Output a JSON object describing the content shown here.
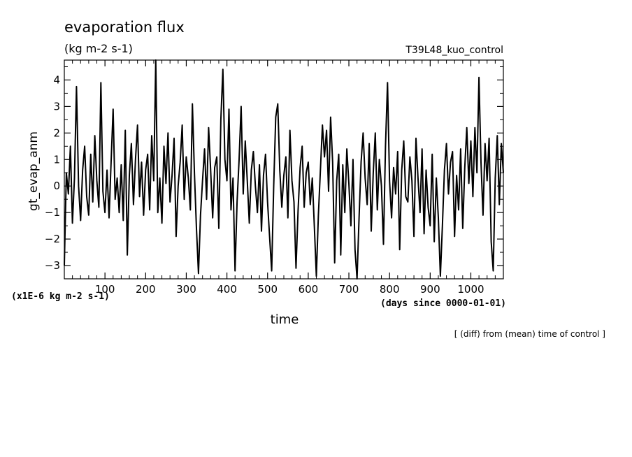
{
  "chart_data": {
    "type": "line",
    "title": "evaporation flux",
    "units": "(kg m-2 s-1)",
    "run_label": "T39L48_kuo_control",
    "xlabel": "time",
    "x_units_note": "(days since 0000-01-01)",
    "ylabel": "gt_evap_anm",
    "y_scale_note": "(x1E-6 kg m-2 s-1)",
    "footnote": "[ (diff) from (mean) time of control ]",
    "xlim": [
      0,
      1080
    ],
    "ylim": [
      -3.5,
      4.75
    ],
    "x_ticks": [
      100,
      200,
      300,
      400,
      500,
      600,
      700,
      800,
      900,
      1000
    ],
    "y_ticks": [
      -3,
      -2,
      -1,
      0,
      1,
      2,
      3,
      4
    ],
    "series": [
      {
        "values": [
          [
            0,
            -3.0
          ],
          [
            5,
            0.5
          ],
          [
            10,
            -0.3
          ],
          [
            15,
            1.5
          ],
          [
            20,
            -1.4
          ],
          [
            25,
            0.3
          ],
          [
            30,
            3.75
          ],
          [
            35,
            0.0
          ],
          [
            40,
            -1.3
          ],
          [
            45,
            0.6
          ],
          [
            50,
            1.5
          ],
          [
            55,
            -0.4
          ],
          [
            60,
            -1.1
          ],
          [
            65,
            1.2
          ],
          [
            70,
            -0.6
          ],
          [
            75,
            1.9
          ],
          [
            80,
            0.2
          ],
          [
            85,
            -0.8
          ],
          [
            90,
            3.9
          ],
          [
            95,
            -0.2
          ],
          [
            100,
            -1.0
          ],
          [
            105,
            0.6
          ],
          [
            110,
            -1.2
          ],
          [
            115,
            0.9
          ],
          [
            120,
            2.9
          ],
          [
            125,
            -0.5
          ],
          [
            130,
            0.3
          ],
          [
            135,
            -1.0
          ],
          [
            140,
            0.8
          ],
          [
            145,
            -1.3
          ],
          [
            150,
            2.1
          ],
          [
            155,
            -2.6
          ],
          [
            160,
            0.4
          ],
          [
            165,
            1.6
          ],
          [
            170,
            -0.7
          ],
          [
            175,
            1.0
          ],
          [
            180,
            2.3
          ],
          [
            185,
            -0.4
          ],
          [
            190,
            0.9
          ],
          [
            195,
            -1.1
          ],
          [
            200,
            0.6
          ],
          [
            205,
            1.2
          ],
          [
            210,
            -0.9
          ],
          [
            215,
            1.9
          ],
          [
            220,
            0.2
          ],
          [
            225,
            4.75
          ],
          [
            230,
            -1.0
          ],
          [
            235,
            0.3
          ],
          [
            240,
            -1.4
          ],
          [
            245,
            1.5
          ],
          [
            250,
            0.1
          ],
          [
            255,
            2.0
          ],
          [
            260,
            -0.6
          ],
          [
            265,
            0.4
          ],
          [
            270,
            1.8
          ],
          [
            275,
            -1.9
          ],
          [
            280,
            0.0
          ],
          [
            285,
            0.9
          ],
          [
            290,
            2.3
          ],
          [
            295,
            -0.5
          ],
          [
            300,
            1.1
          ],
          [
            305,
            0.3
          ],
          [
            310,
            -0.9
          ],
          [
            315,
            3.1
          ],
          [
            320,
            0.5
          ],
          [
            325,
            -1.6
          ],
          [
            330,
            -3.3
          ],
          [
            335,
            -1.1
          ],
          [
            340,
            0.2
          ],
          [
            345,
            1.4
          ],
          [
            350,
            -0.5
          ],
          [
            355,
            2.2
          ],
          [
            360,
            0.6
          ],
          [
            365,
            -1.2
          ],
          [
            370,
            0.7
          ],
          [
            375,
            1.1
          ],
          [
            380,
            -1.6
          ],
          [
            385,
            2.5
          ],
          [
            390,
            4.4
          ],
          [
            395,
            1.0
          ],
          [
            400,
            0.2
          ],
          [
            405,
            2.9
          ],
          [
            410,
            -0.9
          ],
          [
            415,
            0.3
          ],
          [
            420,
            -3.2
          ],
          [
            425,
            -0.6
          ],
          [
            430,
            1.0
          ],
          [
            435,
            3.0
          ],
          [
            440,
            -0.3
          ],
          [
            445,
            1.7
          ],
          [
            450,
            0.2
          ],
          [
            455,
            -1.4
          ],
          [
            460,
            0.6
          ],
          [
            465,
            1.3
          ],
          [
            470,
            0.0
          ],
          [
            475,
            -1.0
          ],
          [
            480,
            0.8
          ],
          [
            485,
            -1.7
          ],
          [
            490,
            0.4
          ],
          [
            495,
            1.2
          ],
          [
            500,
            -0.6
          ],
          [
            505,
            -1.9
          ],
          [
            510,
            -3.2
          ],
          [
            515,
            0.0
          ],
          [
            520,
            2.6
          ],
          [
            525,
            3.1
          ],
          [
            530,
            0.6
          ],
          [
            535,
            -0.8
          ],
          [
            540,
            0.4
          ],
          [
            545,
            1.1
          ],
          [
            550,
            -1.2
          ],
          [
            555,
            2.1
          ],
          [
            560,
            0.2
          ],
          [
            565,
            -0.6
          ],
          [
            570,
            -3.1
          ],
          [
            575,
            -0.9
          ],
          [
            580,
            0.7
          ],
          [
            585,
            1.5
          ],
          [
            590,
            -0.8
          ],
          [
            595,
            0.5
          ],
          [
            600,
            0.9
          ],
          [
            605,
            -0.7
          ],
          [
            610,
            0.3
          ],
          [
            615,
            -1.5
          ],
          [
            620,
            -3.4
          ],
          [
            625,
            -1.1
          ],
          [
            630,
            0.6
          ],
          [
            635,
            2.3
          ],
          [
            640,
            1.1
          ],
          [
            645,
            2.1
          ],
          [
            650,
            -0.2
          ],
          [
            655,
            2.6
          ],
          [
            660,
            0.9
          ],
          [
            665,
            -2.9
          ],
          [
            670,
            0.2
          ],
          [
            675,
            1.2
          ],
          [
            680,
            -2.6
          ],
          [
            685,
            0.8
          ],
          [
            690,
            -1.0
          ],
          [
            695,
            1.4
          ],
          [
            700,
            0.1
          ],
          [
            705,
            -1.5
          ],
          [
            710,
            1.0
          ],
          [
            715,
            -2.4
          ],
          [
            720,
            -3.5
          ],
          [
            725,
            -1.2
          ],
          [
            730,
            0.9
          ],
          [
            735,
            2.0
          ],
          [
            740,
            0.3
          ],
          [
            745,
            -0.7
          ],
          [
            750,
            1.6
          ],
          [
            755,
            -1.7
          ],
          [
            760,
            0.5
          ],
          [
            765,
            2.0
          ],
          [
            770,
            -0.9
          ],
          [
            775,
            1.0
          ],
          [
            780,
            0.0
          ],
          [
            785,
            -2.2
          ],
          [
            790,
            1.5
          ],
          [
            795,
            3.9
          ],
          [
            800,
            0.2
          ],
          [
            805,
            -1.2
          ],
          [
            810,
            0.7
          ],
          [
            815,
            -0.3
          ],
          [
            820,
            1.3
          ],
          [
            825,
            -2.4
          ],
          [
            830,
            0.6
          ],
          [
            835,
            1.7
          ],
          [
            840,
            -0.4
          ],
          [
            845,
            -0.6
          ],
          [
            850,
            1.1
          ],
          [
            855,
            0.2
          ],
          [
            860,
            -1.9
          ],
          [
            865,
            1.8
          ],
          [
            870,
            0.3
          ],
          [
            875,
            -1.0
          ],
          [
            880,
            1.4
          ],
          [
            885,
            -1.8
          ],
          [
            890,
            0.6
          ],
          [
            895,
            -0.8
          ],
          [
            900,
            -1.5
          ],
          [
            905,
            1.2
          ],
          [
            910,
            -2.1
          ],
          [
            915,
            0.3
          ],
          [
            920,
            -1.2
          ],
          [
            925,
            -3.4
          ],
          [
            930,
            -1.5
          ],
          [
            935,
            0.6
          ],
          [
            940,
            1.6
          ],
          [
            945,
            -0.3
          ],
          [
            950,
            0.9
          ],
          [
            955,
            1.3
          ],
          [
            960,
            -1.9
          ],
          [
            965,
            0.4
          ],
          [
            970,
            -0.9
          ],
          [
            975,
            1.4
          ],
          [
            980,
            -1.6
          ],
          [
            985,
            0.7
          ],
          [
            990,
            2.2
          ],
          [
            995,
            0.1
          ],
          [
            1000,
            1.7
          ],
          [
            1005,
            -0.4
          ],
          [
            1010,
            2.2
          ],
          [
            1015,
            0.5
          ],
          [
            1020,
            4.1
          ],
          [
            1025,
            0.9
          ],
          [
            1030,
            -1.1
          ],
          [
            1035,
            1.6
          ],
          [
            1040,
            0.2
          ],
          [
            1045,
            1.8
          ],
          [
            1050,
            -2.1
          ],
          [
            1055,
            -3.2
          ],
          [
            1060,
            0.3
          ],
          [
            1065,
            1.9
          ],
          [
            1070,
            -0.7
          ],
          [
            1075,
            1.6
          ],
          [
            1080,
            0.5
          ]
        ]
      }
    ]
  }
}
